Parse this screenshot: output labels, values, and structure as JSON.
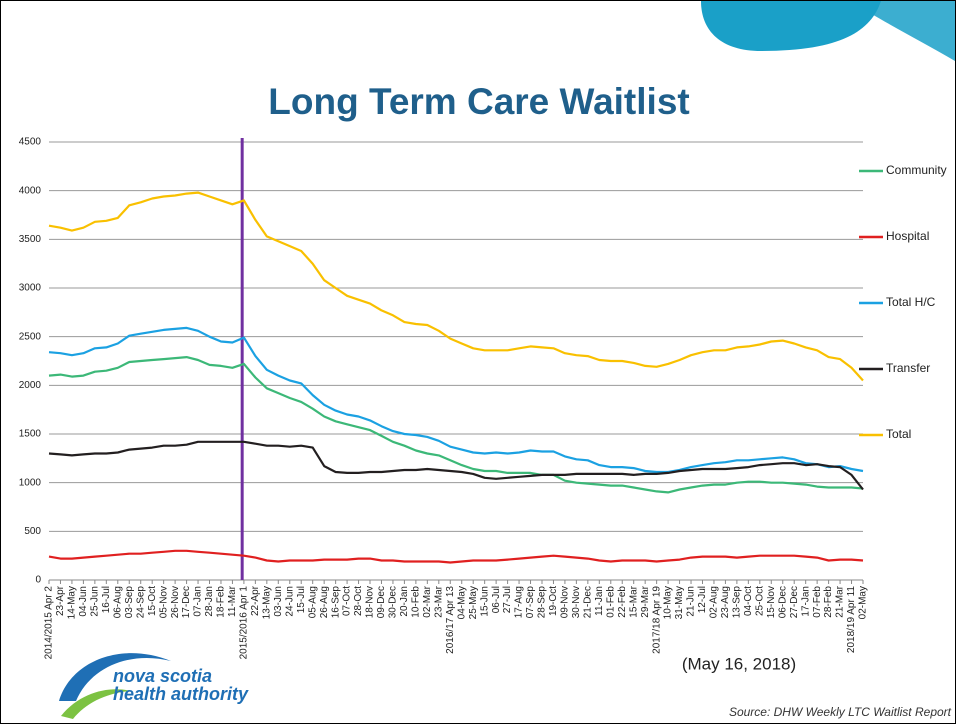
{
  "chart_data": {
    "type": "line",
    "title": "Long Term Care Waitlist",
    "date_note": "(May 16, 2018)",
    "source": "Source: DHW Weekly LTC Waitlist Report",
    "logo": [
      "nova scotia",
      "health authority"
    ],
    "categories": [
      "2014/2015 Apr 2",
      "23-Apr",
      "14-May",
      "04-Jun",
      "25-Jun",
      "16-Jul",
      "06-Aug",
      "03-Sep",
      "24-Sep",
      "15-Oct",
      "05-Nov",
      "26-Nov",
      "17-Dec",
      "07-Jan",
      "28-Jan",
      "18-Feb",
      "11-Mar",
      "2015/2016 Apr 1",
      "22-Apr",
      "13-May",
      "03-Jun",
      "24-Jun",
      "15-Jul",
      "05-Aug",
      "26-Aug",
      "16-Sep",
      "07-Oct",
      "28-Oct",
      "18-Nov",
      "09-Dec",
      "30-Dec",
      "20-Jan",
      "10-Feb",
      "02-Mar",
      "23-Mar",
      "2016/17 Apr 13",
      "04-May",
      "25-May",
      "15-Jun",
      "06-Jul",
      "27-Jul",
      "17-Aug",
      "07-Sep",
      "28-Sep",
      "19-Oct",
      "09-Nov",
      "30-Nov",
      "21-Dec",
      "11-Jan",
      "01-Feb",
      "22-Feb",
      "15-Mar",
      "29-Mar",
      "2017/18 Apr 19",
      "10-May",
      "31-May",
      "21-Jun",
      "12-Jul",
      "02-Aug",
      "23-Aug",
      "13-Sep",
      "04-Oct",
      "25-Oct",
      "15-Nov",
      "06-Dec",
      "27-Dec",
      "17-Jan",
      "07-Feb",
      "28-Feb",
      "21-Mar",
      "2018/19 Apr 11",
      "02-May"
    ],
    "series": [
      {
        "name": "Community",
        "color": "#3cb878",
        "values": [
          2100,
          2110,
          2090,
          2100,
          2140,
          2150,
          2180,
          2240,
          2250,
          2260,
          2270,
          2280,
          2290,
          2260,
          2210,
          2200,
          2180,
          2220,
          2080,
          1970,
          1920,
          1870,
          1830,
          1760,
          1680,
          1630,
          1600,
          1570,
          1540,
          1480,
          1420,
          1380,
          1330,
          1300,
          1280,
          1230,
          1180,
          1140,
          1120,
          1120,
          1100,
          1100,
          1100,
          1080,
          1080,
          1020,
          1000,
          990,
          980,
          970,
          970,
          950,
          930,
          910,
          900,
          930,
          950,
          970,
          980,
          980,
          1000,
          1010,
          1010,
          1000,
          1000,
          990,
          980,
          960,
          950,
          950,
          950,
          940
        ]
      },
      {
        "name": "Hospital",
        "color": "#e02020",
        "values": [
          240,
          220,
          220,
          230,
          240,
          250,
          260,
          270,
          270,
          280,
          290,
          300,
          300,
          290,
          280,
          270,
          260,
          250,
          230,
          200,
          190,
          200,
          200,
          200,
          210,
          210,
          210,
          220,
          220,
          200,
          200,
          190,
          190,
          190,
          190,
          180,
          190,
          200,
          200,
          200,
          210,
          220,
          230,
          240,
          250,
          240,
          230,
          220,
          200,
          190,
          200,
          200,
          200,
          190,
          200,
          210,
          230,
          240,
          240,
          240,
          230,
          240,
          250,
          250,
          250,
          250,
          240,
          230,
          200,
          210,
          210,
          200
        ]
      },
      {
        "name": "Total H/C",
        "color": "#1ba1e2",
        "values": [
          2340,
          2330,
          2310,
          2330,
          2380,
          2390,
          2430,
          2510,
          2530,
          2550,
          2570,
          2580,
          2590,
          2560,
          2500,
          2450,
          2440,
          2490,
          2300,
          2160,
          2100,
          2050,
          2020,
          1900,
          1800,
          1740,
          1700,
          1680,
          1640,
          1580,
          1530,
          1500,
          1490,
          1470,
          1430,
          1370,
          1340,
          1310,
          1300,
          1310,
          1300,
          1310,
          1330,
          1320,
          1320,
          1270,
          1240,
          1230,
          1180,
          1160,
          1160,
          1150,
          1120,
          1110,
          1110,
          1130,
          1160,
          1180,
          1200,
          1210,
          1230,
          1230,
          1240,
          1250,
          1260,
          1240,
          1200,
          1190,
          1160,
          1170,
          1140,
          1120
        ]
      },
      {
        "name": "Transfer",
        "color": "#231f20",
        "values": [
          1300,
          1290,
          1280,
          1290,
          1300,
          1300,
          1310,
          1340,
          1350,
          1360,
          1380,
          1380,
          1390,
          1420,
          1420,
          1420,
          1420,
          1420,
          1400,
          1380,
          1380,
          1370,
          1380,
          1360,
          1170,
          1110,
          1100,
          1100,
          1110,
          1110,
          1120,
          1130,
          1130,
          1140,
          1130,
          1120,
          1110,
          1090,
          1050,
          1040,
          1050,
          1060,
          1070,
          1080,
          1080,
          1080,
          1090,
          1090,
          1090,
          1090,
          1090,
          1080,
          1090,
          1090,
          1100,
          1120,
          1130,
          1140,
          1140,
          1140,
          1150,
          1160,
          1180,
          1190,
          1200,
          1200,
          1180,
          1190,
          1170,
          1160,
          1080,
          930
        ]
      },
      {
        "name": "Total",
        "color": "#f9c000",
        "values": [
          3640,
          3620,
          3590,
          3620,
          3680,
          3690,
          3720,
          3850,
          3880,
          3920,
          3940,
          3950,
          3970,
          3980,
          3940,
          3900,
          3860,
          3900,
          3700,
          3530,
          3480,
          3430,
          3380,
          3250,
          3080,
          3000,
          2920,
          2880,
          2840,
          2770,
          2720,
          2650,
          2630,
          2620,
          2560,
          2480,
          2430,
          2380,
          2360,
          2360,
          2360,
          2380,
          2400,
          2390,
          2380,
          2330,
          2310,
          2300,
          2260,
          2250,
          2250,
          2230,
          2200,
          2190,
          2220,
          2260,
          2310,
          2340,
          2360,
          2360,
          2390,
          2400,
          2420,
          2450,
          2460,
          2430,
          2390,
          2360,
          2290,
          2270,
          2180,
          2050
        ]
      }
    ],
    "ylim": [
      0,
      4500
    ],
    "yticks": [
      0,
      500,
      1000,
      1500,
      2000,
      2500,
      3000,
      3500,
      4000,
      4500
    ],
    "grid": true,
    "legend": "right",
    "title_color": "#1f5f8b"
  }
}
